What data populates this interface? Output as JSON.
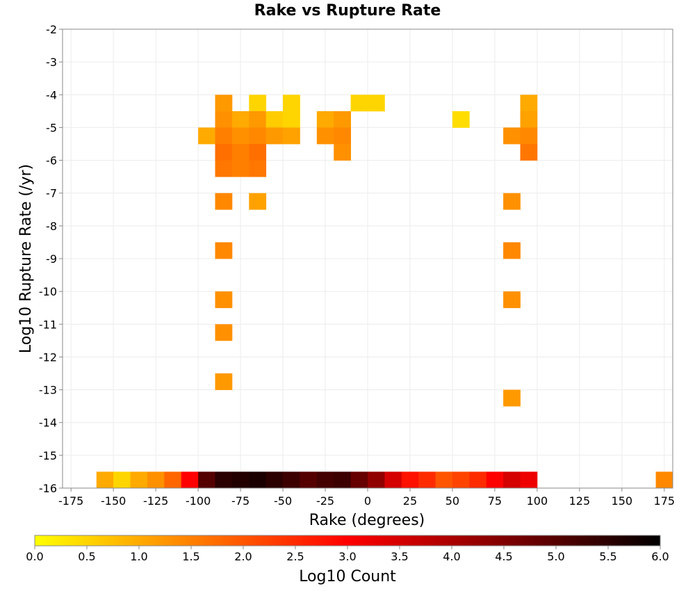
{
  "chart_data": {
    "type": "heatmap",
    "title": "Rake vs Rupture Rate",
    "xlabel": "Rake (degrees)",
    "ylabel": "Log10 Rupture Rate (/yr)",
    "xlim": [
      -180,
      180
    ],
    "ylim": [
      -16,
      -2
    ],
    "x_bin_width": 10,
    "y_bin_height": 0.5,
    "x_ticks": [
      -175,
      -150,
      -125,
      -100,
      -75,
      -50,
      -25,
      0,
      25,
      50,
      75,
      100,
      125,
      150,
      175
    ],
    "y_ticks": [
      -2,
      -3,
      -4,
      -5,
      -6,
      -7,
      -8,
      -9,
      -10,
      -11,
      -12,
      -13,
      -14,
      -15,
      -16
    ],
    "grid": true,
    "colorbar": {
      "label": "Log10 Count",
      "range": [
        0,
        6
      ],
      "ticks": [
        "0.0",
        "0.5",
        "1.0",
        "1.5",
        "2.0",
        "2.5",
        "3.0",
        "3.5",
        "4.0",
        "4.5",
        "5.0",
        "5.5",
        "6.0"
      ],
      "colors": [
        "#ffff00",
        "#ff8000",
        "#ff0000",
        "#800000",
        "#000000"
      ]
    },
    "cells": [
      {
        "x": -155,
        "y": -15.75,
        "v": 1.0
      },
      {
        "x": -145,
        "y": -15.75,
        "v": 0.5
      },
      {
        "x": -135,
        "y": -15.75,
        "v": 1.0
      },
      {
        "x": -125,
        "y": -15.75,
        "v": 1.3
      },
      {
        "x": -115,
        "y": -15.75,
        "v": 1.8
      },
      {
        "x": -105,
        "y": -15.75,
        "v": 3.0
      },
      {
        "x": -95,
        "y": -15.75,
        "v": 5.0
      },
      {
        "x": -85,
        "y": -15.75,
        "v": 5.5
      },
      {
        "x": -75,
        "y": -15.75,
        "v": 5.6
      },
      {
        "x": -65,
        "y": -15.75,
        "v": 5.7
      },
      {
        "x": -55,
        "y": -15.75,
        "v": 5.5
      },
      {
        "x": -45,
        "y": -15.75,
        "v": 5.3
      },
      {
        "x": -35,
        "y": -15.75,
        "v": 5.0
      },
      {
        "x": -25,
        "y": -15.75,
        "v": 5.2
      },
      {
        "x": -15,
        "y": -15.75,
        "v": 5.3
      },
      {
        "x": -5,
        "y": -15.75,
        "v": 4.8
      },
      {
        "x": 5,
        "y": -15.75,
        "v": 4.3
      },
      {
        "x": 15,
        "y": -15.75,
        "v": 3.5
      },
      {
        "x": 25,
        "y": -15.75,
        "v": 2.8
      },
      {
        "x": 35,
        "y": -15.75,
        "v": 2.5
      },
      {
        "x": 45,
        "y": -15.75,
        "v": 2.0
      },
      {
        "x": 55,
        "y": -15.75,
        "v": 2.2
      },
      {
        "x": 65,
        "y": -15.75,
        "v": 2.5
      },
      {
        "x": 75,
        "y": -15.75,
        "v": 3.0
      },
      {
        "x": 85,
        "y": -15.75,
        "v": 3.5
      },
      {
        "x": 95,
        "y": -15.75,
        "v": 3.2
      },
      {
        "x": 175,
        "y": -15.75,
        "v": 1.4
      },
      {
        "x": -85,
        "y": -4.25,
        "v": 1.2
      },
      {
        "x": -65,
        "y": -4.25,
        "v": 0.5
      },
      {
        "x": -45,
        "y": -4.25,
        "v": 0.5
      },
      {
        "x": -5,
        "y": -4.25,
        "v": 0.5
      },
      {
        "x": 5,
        "y": -4.25,
        "v": 0.5
      },
      {
        "x": 95,
        "y": -4.25,
        "v": 1.0
      },
      {
        "x": -85,
        "y": -4.75,
        "v": 1.3
      },
      {
        "x": -75,
        "y": -4.75,
        "v": 1.0
      },
      {
        "x": -65,
        "y": -4.75,
        "v": 1.2
      },
      {
        "x": -55,
        "y": -4.75,
        "v": 0.6
      },
      {
        "x": -45,
        "y": -4.75,
        "v": 0.5
      },
      {
        "x": -25,
        "y": -4.75,
        "v": 1.0
      },
      {
        "x": -15,
        "y": -4.75,
        "v": 1.2
      },
      {
        "x": 55,
        "y": -4.75,
        "v": 0.4
      },
      {
        "x": 95,
        "y": -4.75,
        "v": 1.1
      },
      {
        "x": -95,
        "y": -5.25,
        "v": 1.0
      },
      {
        "x": -85,
        "y": -5.25,
        "v": 1.5
      },
      {
        "x": -75,
        "y": -5.25,
        "v": 1.3
      },
      {
        "x": -65,
        "y": -5.25,
        "v": 1.4
      },
      {
        "x": -55,
        "y": -5.25,
        "v": 1.2
      },
      {
        "x": -45,
        "y": -5.25,
        "v": 1.1
      },
      {
        "x": -25,
        "y": -5.25,
        "v": 1.3
      },
      {
        "x": -15,
        "y": -5.25,
        "v": 1.4
      },
      {
        "x": 85,
        "y": -5.25,
        "v": 1.3
      },
      {
        "x": 95,
        "y": -5.25,
        "v": 1.4
      },
      {
        "x": -85,
        "y": -5.75,
        "v": 1.7
      },
      {
        "x": -75,
        "y": -5.75,
        "v": 1.5
      },
      {
        "x": -65,
        "y": -5.75,
        "v": 1.7
      },
      {
        "x": -15,
        "y": -5.75,
        "v": 1.3
      },
      {
        "x": 95,
        "y": -5.75,
        "v": 1.6
      },
      {
        "x": -85,
        "y": -6.25,
        "v": 1.6
      },
      {
        "x": -75,
        "y": -6.25,
        "v": 1.5
      },
      {
        "x": -65,
        "y": -6.25,
        "v": 1.6
      },
      {
        "x": -85,
        "y": -7.25,
        "v": 1.4
      },
      {
        "x": -65,
        "y": -7.25,
        "v": 1.1
      },
      {
        "x": 85,
        "y": -7.25,
        "v": 1.3
      },
      {
        "x": -85,
        "y": -8.75,
        "v": 1.4
      },
      {
        "x": 85,
        "y": -8.75,
        "v": 1.4
      },
      {
        "x": -85,
        "y": -10.25,
        "v": 1.3
      },
      {
        "x": 85,
        "y": -10.25,
        "v": 1.3
      },
      {
        "x": -85,
        "y": -11.25,
        "v": 1.3
      },
      {
        "x": -85,
        "y": -12.75,
        "v": 1.2
      },
      {
        "x": 85,
        "y": -13.25,
        "v": 1.2
      }
    ]
  }
}
